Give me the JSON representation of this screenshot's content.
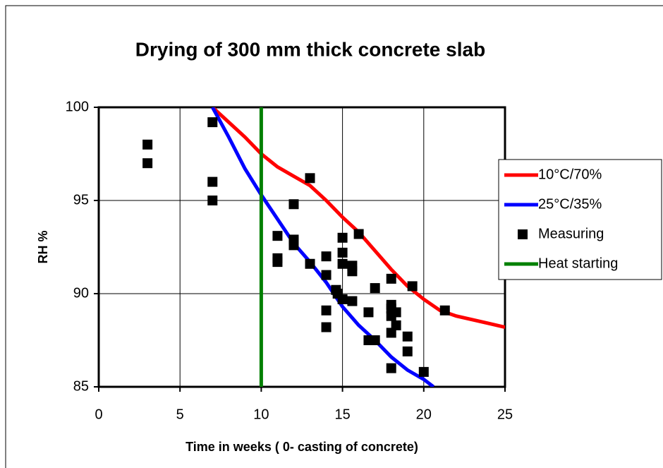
{
  "chart_data": {
    "type": "scatter",
    "title": "Drying of 300 mm thick concrete slab",
    "x_label": "Time in weeks ( 0- casting of concrete)",
    "y_label": "RH %",
    "xlim": [
      0,
      25
    ],
    "xticks": [
      0,
      5,
      10,
      15,
      20,
      25
    ],
    "ylim": [
      85,
      100
    ],
    "yticks": [
      85,
      90,
      95,
      100
    ],
    "grid": true,
    "legend": "right",
    "series": [
      {
        "name": "10°C/70%",
        "color": "#ff0000",
        "mode": "line",
        "x": [
          7,
          8,
          9,
          10,
          11,
          12,
          13,
          14,
          15,
          16,
          17,
          18,
          19,
          20,
          21,
          22,
          23,
          24,
          25
        ],
        "values": [
          100,
          99.2,
          98.4,
          97.5,
          96.8,
          96.3,
          95.8,
          95.0,
          94.1,
          93.3,
          92.3,
          91.3,
          90.4,
          89.7,
          89.1,
          88.8,
          88.6,
          88.4,
          88.2
        ]
      },
      {
        "name": "25°C/35%",
        "color": "#0000ff",
        "mode": "line",
        "x": [
          7,
          8,
          9,
          10,
          11,
          12,
          13,
          14,
          15,
          16,
          17,
          18,
          19,
          20,
          20.6
        ],
        "values": [
          100,
          98.4,
          96.7,
          95.3,
          94.0,
          92.7,
          91.7,
          90.6,
          89.3,
          88.3,
          87.5,
          86.6,
          85.9,
          85.4,
          85.0
        ]
      },
      {
        "name": "Measuring",
        "color": "#000000",
        "mode": "markers",
        "x": [
          3,
          3,
          7,
          7,
          7,
          11,
          11,
          11,
          12,
          12,
          12,
          12,
          13,
          13,
          14,
          14,
          14,
          14,
          14.6,
          14.7,
          15,
          15,
          15,
          15,
          15.6,
          15.6,
          15.6,
          16,
          16.6,
          16.6,
          17,
          17,
          18,
          18,
          18,
          18,
          18,
          18,
          18.3,
          18.3,
          19,
          19,
          19.3,
          20,
          21.3
        ],
        "values": [
          98,
          97,
          99.2,
          96,
          95,
          93.1,
          91.9,
          91.7,
          94.8,
          92.9,
          92.8,
          92.6,
          96.2,
          91.6,
          92,
          91,
          89.1,
          88.2,
          90.2,
          90.0,
          93,
          92.2,
          91.6,
          89.7,
          91.5,
          91.2,
          89.6,
          93.2,
          89,
          87.5,
          90.3,
          87.5,
          90.8,
          89.4,
          89.2,
          88.8,
          87.9,
          86,
          89,
          88.3,
          87.7,
          86.9,
          90.4,
          85.8,
          89.1
        ]
      },
      {
        "name": "Heat starting",
        "color": "#008000",
        "mode": "line",
        "x": [
          10,
          10
        ],
        "values": [
          85,
          100
        ]
      }
    ]
  }
}
